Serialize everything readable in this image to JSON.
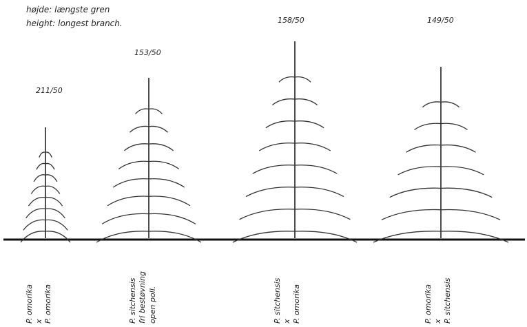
{
  "header": {
    "line1": "højde: længste gren",
    "line2": "height: longest branch."
  },
  "trees": [
    {
      "code": "211/50",
      "label": [
        "P. omorika",
        "x",
        "P. omorika"
      ]
    },
    {
      "code": "153/50",
      "label": [
        "P. sitchensis",
        "fri bestøvning",
        "open poll."
      ]
    },
    {
      "code": "158/50",
      "label": [
        "P. sitchensis",
        "x",
        "P. omorika"
      ]
    },
    {
      "code": "149/50",
      "label": [
        "P. omorika",
        "x",
        "P. sitchensis"
      ]
    }
  ]
}
